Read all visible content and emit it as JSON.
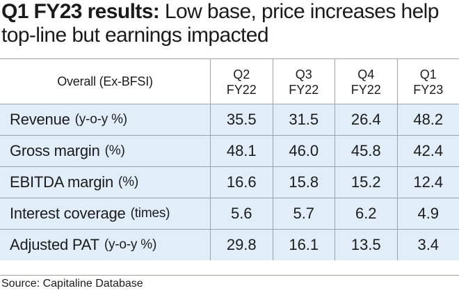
{
  "title": {
    "lead": "Q1 FY23 results:",
    "rest": "Low base, price increases help top-line but earnings impacted"
  },
  "chart_data": {
    "type": "table",
    "header_label": "Overall (Ex-BFSI)",
    "columns": [
      {
        "line1": "Q2",
        "line2": "FY22"
      },
      {
        "line1": "Q3",
        "line2": "FY22"
      },
      {
        "line1": "Q4",
        "line2": "FY22"
      },
      {
        "line1": "Q1",
        "line2": "FY23"
      }
    ],
    "rows": [
      {
        "metric": "Revenue",
        "unit": "(y-o-y %)",
        "values": [
          "35.5",
          "31.5",
          "26.4",
          "48.2"
        ]
      },
      {
        "metric": "Gross margin",
        "unit": "(%)",
        "values": [
          "48.1",
          "46.0",
          "45.8",
          "42.4"
        ]
      },
      {
        "metric": "EBITDA margin",
        "unit": "(%)",
        "values": [
          "16.6",
          "15.8",
          "15.2",
          "12.4"
        ]
      },
      {
        "metric": "Interest coverage",
        "unit": "(times)",
        "values": [
          "5.6",
          "5.7",
          "6.2",
          "4.9"
        ]
      },
      {
        "metric": "Adjusted PAT",
        "unit": "(y-o-y %)",
        "values": [
          "29.8",
          "16.1",
          "13.5",
          "3.4"
        ]
      }
    ]
  },
  "source": "Source: Capitaline Database"
}
